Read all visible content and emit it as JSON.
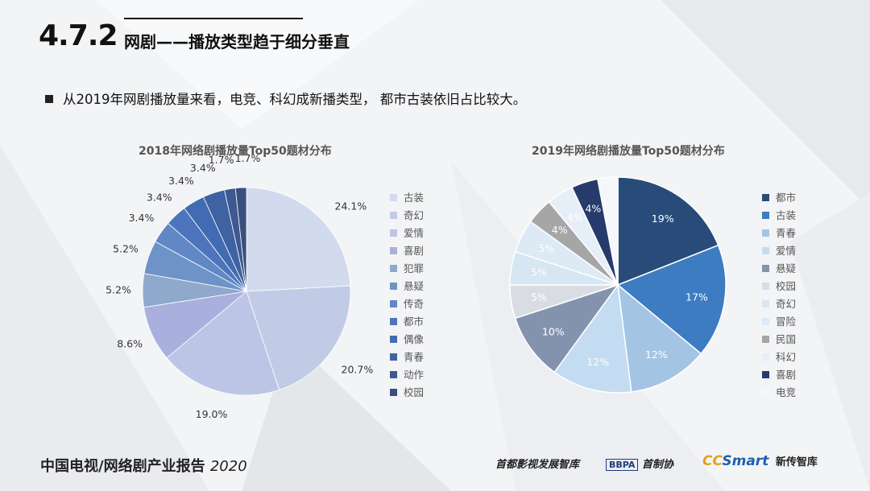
{
  "header": {
    "section_number": "4.7.2",
    "title": "网剧——播放类型趋于细分垂直"
  },
  "bullet": "从2019年网剧播放量来看，电竞、科幻成新播类型， 都市古装依旧占比较大。",
  "footer": {
    "report_title": "中国电视/网络剧产业报告",
    "report_year": "2020",
    "logo1": "首都影视发展智库",
    "logo2_box": "BBPA",
    "logo2_text": "首制协",
    "logo3_cc": "CC",
    "logo3_smart": "Smart",
    "logo3_text": "新传智库"
  },
  "chart_data": [
    {
      "type": "pie",
      "title": "2018年网络剧播放量Top50题材分布",
      "categories": [
        "古装",
        "奇幻",
        "爱情",
        "喜剧",
        "犯罪",
        "悬疑",
        "传奇",
        "都市",
        "偶像",
        "青春",
        "动作",
        "校园"
      ],
      "values": [
        24.1,
        20.7,
        19.0,
        8.6,
        5.2,
        5.2,
        3.4,
        3.4,
        3.4,
        3.4,
        1.7,
        1.7
      ],
      "labels": [
        "24.1%",
        "20.7%",
        "19.0%",
        "8.6%",
        "5.2%",
        "5.2%",
        "3.4%",
        "3.4%",
        "3.4%",
        "3.4%",
        "1.7%",
        "1.7%"
      ],
      "colors": [
        "#d2dbed",
        "#c2cbe6",
        "#bcc5e5",
        "#a9b0dd",
        "#8fa9cc",
        "#6e93c7",
        "#6187c5",
        "#4d74bd",
        "#416bb2",
        "#3f62a2",
        "#3e5890",
        "#39507d"
      ],
      "legend_position": "right"
    },
    {
      "type": "pie",
      "title": "2019年网络剧播放量Top50题材分布",
      "categories": [
        "都市",
        "古装",
        "青春",
        "爱情",
        "悬疑",
        "校园",
        "奇幻",
        "冒险",
        "民国",
        "科幻",
        "喜剧",
        "电竞"
      ],
      "values": [
        19,
        17,
        12,
        12,
        10,
        5,
        5,
        5,
        4,
        4,
        4,
        3
      ],
      "labels": [
        "19%",
        "17%",
        "12%",
        "12%",
        "10%",
        "5%",
        "5%",
        "5%",
        "4%",
        "4%",
        "4%",
        ""
      ],
      "colors": [
        "#294b7a",
        "#3d7cc0",
        "#a4c4e4",
        "#c3dcf1",
        "#8393ad",
        "#d9dde3",
        "#d6e6f3",
        "#dde9f5",
        "#a6a6a6",
        "#e6eef8",
        "#263a6c",
        "#f5f7fa"
      ],
      "legend_position": "right"
    }
  ]
}
